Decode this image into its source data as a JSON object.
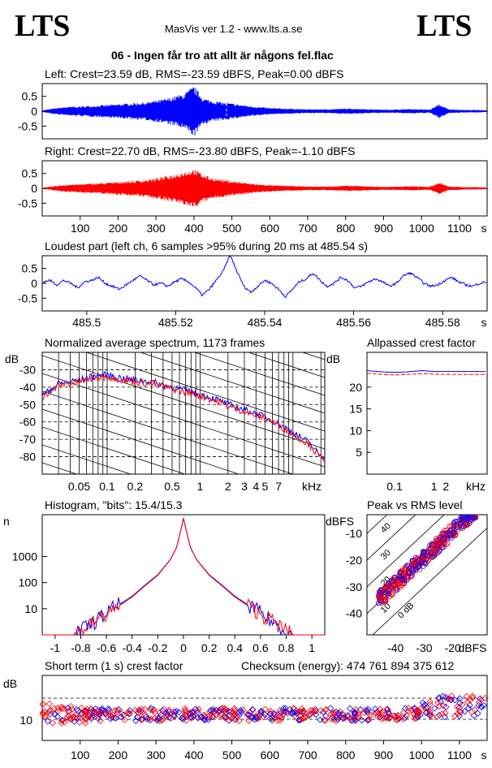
{
  "header": {
    "logo_left": "LTS",
    "logo_right": "LTS",
    "app": "MasVis ver 1.2 - www.lts.a.se",
    "file": "06 - Ingen får tro att allt är någons fel.flac"
  },
  "colors": {
    "left": "#0000ff",
    "right": "#ff0000",
    "grid": "#000000",
    "bg": "#ffffff"
  },
  "chart_data": [
    {
      "type": "line",
      "title": "Left: Crest=23.59 dB, RMS=-23.59 dBFS, Peak=0.00 dBFS",
      "ylim": [
        -0.9,
        0.9
      ],
      "xlim": [
        0,
        1173
      ],
      "y_ticks": [
        "0.5",
        "0",
        "-0.5"
      ],
      "series": [
        {
          "values": [
            0.03,
            0.08,
            0.12,
            0.14,
            0.15,
            0.17,
            0.18,
            0.2,
            0.22,
            0.24,
            0.26,
            0.28,
            0.33,
            0.38,
            0.46,
            0.55,
            0.78,
            0.4,
            0.32,
            0.28,
            0.24,
            0.2,
            0.16,
            0.13,
            0.1,
            0.09,
            0.08,
            0.07,
            0.06,
            0.06,
            0.06,
            0.07,
            0.08,
            0.08,
            0.07,
            0.06,
            0.05,
            0.05,
            0.06,
            0.07,
            0.06,
            0.05,
            0.22,
            0.06,
            0.05,
            0.04,
            0.04,
            0.03
          ]
        }
      ]
    },
    {
      "type": "line",
      "title": "Right: Crest=22.70 dB, RMS=-23.80 dBFS, Peak=-1.10 dBFS",
      "ylim": [
        -0.9,
        0.9
      ],
      "xlim": [
        0,
        1173
      ],
      "y_ticks": [
        "0.5",
        "0",
        "-0.5"
      ],
      "x_ticks": [
        "100",
        "200",
        "300",
        "400",
        "500",
        "600",
        "700",
        "800",
        "900",
        "1000",
        "1100"
      ],
      "x_unit": "s",
      "series": [
        {
          "values": [
            0.02,
            0.06,
            0.1,
            0.12,
            0.13,
            0.15,
            0.16,
            0.18,
            0.2,
            0.22,
            0.24,
            0.27,
            0.31,
            0.37,
            0.44,
            0.52,
            0.6,
            0.42,
            0.32,
            0.27,
            0.23,
            0.19,
            0.15,
            0.12,
            0.1,
            0.09,
            0.08,
            0.07,
            0.06,
            0.06,
            0.06,
            0.07,
            0.08,
            0.08,
            0.07,
            0.06,
            0.05,
            0.05,
            0.06,
            0.07,
            0.06,
            0.05,
            0.18,
            0.06,
            0.05,
            0.04,
            0.04,
            0.03
          ]
        }
      ]
    },
    {
      "type": "line",
      "title": "Loudest part (left  ch, 6 samples >95% during 20 ms at 485.54 s)",
      "ylim": [
        -0.9,
        0.9
      ],
      "xlim": [
        485.49,
        485.59
      ],
      "y_ticks": [
        "0.5",
        "0",
        "-0.5"
      ],
      "x_ticks": [
        "485.5",
        "485.52",
        "485.54",
        "485.56",
        "485.58"
      ],
      "x_unit": "s",
      "series": [
        {
          "values": [
            0.05,
            0.1,
            -0.05,
            0.1,
            0.0,
            -0.15,
            0.05,
            0.1,
            0.2,
            0.0,
            -0.1,
            -0.2,
            -0.05,
            0.1,
            0.25,
            0.1,
            -0.05,
            0.0,
            -0.1,
            0.05,
            0.15,
            0.05,
            -0.15,
            -0.4,
            -0.2,
            0.1,
            0.4,
            0.95,
            0.4,
            -0.1,
            -0.3,
            -0.1,
            0.1,
            0.0,
            -0.2,
            -0.45,
            -0.2,
            0.05,
            0.15,
            0.35,
            0.1,
            -0.1,
            0.0,
            0.2,
            0.1,
            -0.15,
            -0.1,
            0.05,
            0.15,
            0.05,
            -0.1,
            0.0,
            0.25,
            0.35,
            0.2,
            0.0,
            -0.1,
            -0.05,
            0.1,
            0.2,
            0.05,
            -0.05,
            -0.1,
            0.0,
            0.05
          ]
        }
      ]
    },
    {
      "type": "line",
      "title": "Normalized average spectrum, 1173 frames",
      "ylabel": "dB",
      "y_ticks": [
        "-30",
        "-40",
        "-50",
        "-60",
        "-70",
        "-80"
      ],
      "x_ticks": [
        "0.05",
        "0.1",
        "0.2",
        "0.5",
        "1",
        "2",
        "3",
        "4",
        "5",
        "7"
      ],
      "x_unit": "kHz",
      "ylim": [
        -90,
        -20
      ],
      "series": [
        {
          "color": "blue",
          "x": [
            0.02,
            0.03,
            0.05,
            0.07,
            0.1,
            0.15,
            0.2,
            0.3,
            0.5,
            0.7,
            1,
            1.5,
            2,
            3,
            5,
            7,
            10,
            15,
            20
          ],
          "y": [
            -45,
            -38,
            -36,
            -34,
            -33,
            -35,
            -36,
            -37,
            -40,
            -42,
            -44,
            -47,
            -50,
            -53,
            -57,
            -61,
            -66,
            -72,
            -80
          ]
        },
        {
          "color": "red",
          "x": [
            0.02,
            0.03,
            0.05,
            0.07,
            0.1,
            0.15,
            0.2,
            0.3,
            0.5,
            0.7,
            1,
            1.5,
            2,
            3,
            5,
            7,
            10,
            15,
            20
          ],
          "y": [
            -46,
            -39,
            -37,
            -35,
            -34,
            -36,
            -37,
            -38,
            -41,
            -43,
            -45,
            -48,
            -51,
            -54,
            -58,
            -62,
            -67,
            -73,
            -81
          ]
        }
      ]
    },
    {
      "type": "line",
      "title": "Allpassed crest factor",
      "ylabel": "dB",
      "y_ticks": [
        "20",
        "15",
        "10",
        "5"
      ],
      "x_ticks": [
        "0.1",
        "1",
        "2"
      ],
      "x_unit": "kHz",
      "ylim": [
        0,
        28
      ],
      "series": [
        {
          "color": "blue",
          "x": [
            0.02,
            0.05,
            0.1,
            0.2,
            0.5,
            1,
            2,
            5,
            20
          ],
          "y": [
            23.8,
            23.5,
            23.4,
            23.5,
            23.8,
            23.6,
            23.6,
            23.6,
            23.6
          ]
        },
        {
          "color": "red",
          "x": [
            0.02,
            0.05,
            0.1,
            0.2,
            0.5,
            1,
            2,
            5,
            20
          ],
          "y": [
            23.2,
            22.9,
            22.8,
            22.9,
            23.1,
            23.0,
            22.9,
            22.9,
            22.9
          ]
        }
      ]
    },
    {
      "type": "line",
      "title": "Histogram, \"bits\": 15.4/15.3",
      "ylabel": "n",
      "y_ticks": [
        "1000",
        "100",
        "10"
      ],
      "x_ticks": [
        "-1",
        "-0.8",
        "-0.6",
        "-0.4",
        "-0.2",
        "0",
        "0.2",
        "0.4",
        "0.6",
        "0.8",
        "1"
      ],
      "xlim": [
        -1.1,
        1.1
      ],
      "series": [
        {
          "color": "blue",
          "x": [
            -0.85,
            -0.7,
            -0.55,
            -0.4,
            -0.3,
            -0.2,
            -0.1,
            -0.05,
            0,
            0.05,
            0.1,
            0.2,
            0.3,
            0.4,
            0.55,
            0.7,
            0.85
          ],
          "y": [
            1,
            3,
            10,
            30,
            80,
            200,
            800,
            2500,
            30000,
            2500,
            800,
            200,
            80,
            30,
            10,
            3,
            1
          ]
        },
        {
          "color": "red",
          "x": [
            -0.85,
            -0.7,
            -0.55,
            -0.4,
            -0.3,
            -0.2,
            -0.1,
            -0.05,
            0,
            0.05,
            0.1,
            0.2,
            0.3,
            0.4,
            0.55,
            0.7,
            0.85
          ],
          "y": [
            1,
            3,
            9,
            28,
            75,
            190,
            780,
            2400,
            29000,
            2400,
            780,
            190,
            75,
            28,
            9,
            3,
            1
          ]
        }
      ]
    },
    {
      "type": "scatter",
      "title": "Peak vs RMS level",
      "ylabel": "dBFS",
      "xlabel": "dBFS",
      "y_ticks": [
        "-10",
        "-20",
        "-30",
        "-40"
      ],
      "x_ticks": [
        "-40",
        "-30",
        "-20"
      ],
      "diagonal_labels": [
        "40",
        "30",
        "20",
        "10",
        "0 dB"
      ],
      "xlim": [
        -50,
        -8
      ],
      "ylim": [
        -48,
        -3
      ]
    },
    {
      "type": "scatter",
      "title": "Short term (1 s) crest factor",
      "checksum": "Checksum (energy):   474 761 894 375 612",
      "ylabel": "dB",
      "y_ticks": [
        "10"
      ],
      "x_ticks": [
        "100",
        "200",
        "300",
        "400",
        "500",
        "600",
        "700",
        "800",
        "900",
        "1000",
        "1100"
      ],
      "x_unit": "s",
      "xlim": [
        0,
        1173
      ]
    }
  ]
}
